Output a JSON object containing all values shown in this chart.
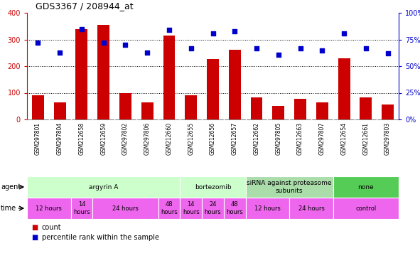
{
  "title": "GDS3367 / 208944_at",
  "samples": [
    "GSM297801",
    "GSM297804",
    "GSM212658",
    "GSM212659",
    "GSM297802",
    "GSM297806",
    "GSM212660",
    "GSM212655",
    "GSM212656",
    "GSM212657",
    "GSM212662",
    "GSM297805",
    "GSM212663",
    "GSM297807",
    "GSM212654",
    "GSM212661",
    "GSM297803"
  ],
  "counts": [
    90,
    65,
    340,
    355,
    100,
    65,
    315,
    90,
    228,
    262,
    83,
    52,
    78,
    65,
    230,
    83,
    57
  ],
  "percentiles": [
    72,
    63,
    85,
    72,
    70,
    63,
    84,
    67,
    81,
    83,
    67,
    61,
    67,
    65,
    81,
    67,
    62
  ],
  "bar_color": "#CC0000",
  "dot_color": "#0000CC",
  "left_axis_color": "#CC0000",
  "right_axis_color": "#0000CC",
  "grid_color": "#000000",
  "bg_color": "#FFFFFF",
  "sample_bg": "#CCCCCC",
  "ylim_left": [
    0,
    400
  ],
  "ylim_right": [
    0,
    100
  ],
  "yticks_left": [
    0,
    100,
    200,
    300,
    400
  ],
  "yticks_right": [
    0,
    25,
    50,
    75,
    100
  ],
  "ytick_labels_right": [
    "0%",
    "25%",
    "50%",
    "75%",
    "100%"
  ],
  "agent_groups": [
    {
      "label": "argyrin A",
      "start": 0,
      "end": 7,
      "color": "#CCFFCC"
    },
    {
      "label": "bortezomib",
      "start": 7,
      "end": 10,
      "color": "#CCFFCC"
    },
    {
      "label": "siRNA against proteasome\nsubunits",
      "start": 10,
      "end": 14,
      "color": "#AADDAA"
    },
    {
      "label": "none",
      "start": 14,
      "end": 17,
      "color": "#55CC55"
    }
  ],
  "time_groups": [
    {
      "label": "12 hours",
      "start": 0,
      "end": 2
    },
    {
      "label": "14\nhours",
      "start": 2,
      "end": 3
    },
    {
      "label": "24 hours",
      "start": 3,
      "end": 6
    },
    {
      "label": "48\nhours",
      "start": 6,
      "end": 7
    },
    {
      "label": "14\nhours",
      "start": 7,
      "end": 8
    },
    {
      "label": "24\nhours",
      "start": 8,
      "end": 9
    },
    {
      "label": "48\nhours",
      "start": 9,
      "end": 10
    },
    {
      "label": "12 hours",
      "start": 10,
      "end": 12
    },
    {
      "label": "24 hours",
      "start": 12,
      "end": 14
    },
    {
      "label": "control",
      "start": 14,
      "end": 17
    }
  ],
  "time_color": "#EE66EE",
  "legend_items": [
    {
      "label": "count",
      "color": "#CC0000"
    },
    {
      "label": "percentile rank within the sample",
      "color": "#0000CC"
    }
  ]
}
